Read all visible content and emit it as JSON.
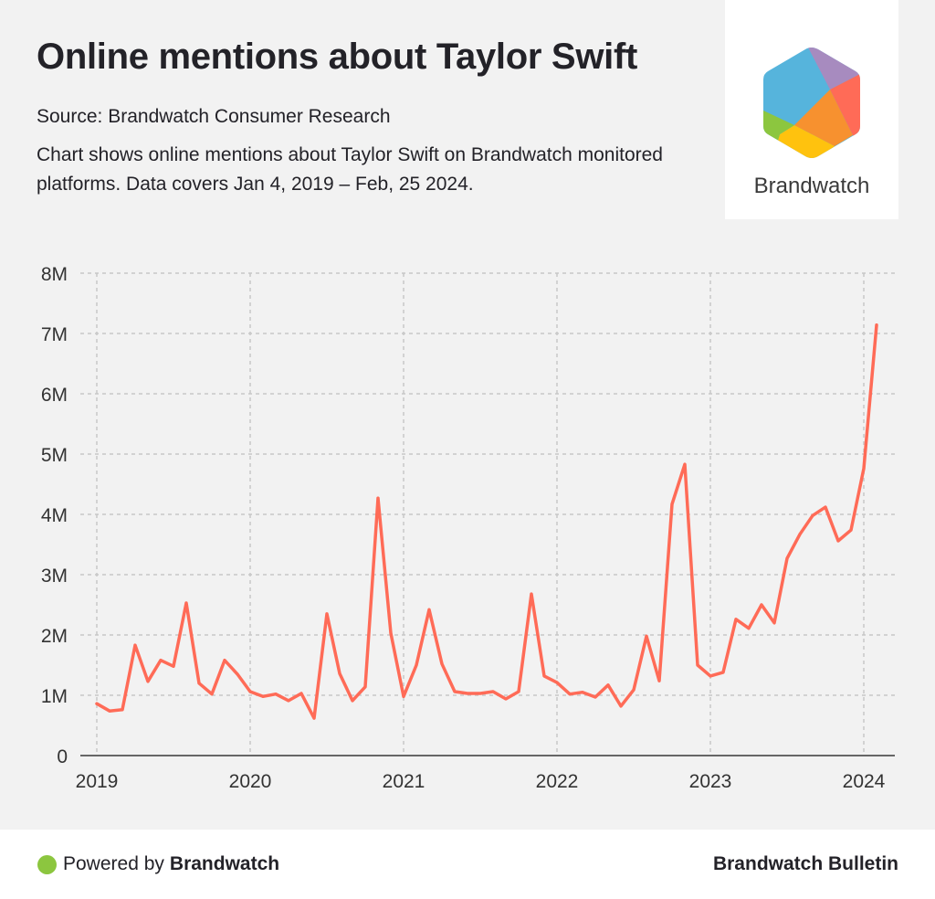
{
  "header": {
    "title": "Online mentions about Taylor Swift",
    "source": "Source: Brandwatch Consumer Research",
    "description": "Chart shows online mentions about Taylor Swift on Brandwatch monitored platforms. Data covers Jan 4, 2019 – Feb, 25 2024."
  },
  "logo": {
    "text": "Brandwatch",
    "colors": [
      "#56b4dc",
      "#a78bbf",
      "#ff6b57",
      "#f7912f",
      "#ffc20e",
      "#8cc63f"
    ]
  },
  "footer": {
    "powered_prefix": "Powered by",
    "powered_brand": "Brandwatch",
    "right_label": "Brandwatch Bulletin",
    "dot_color": "#8cc63f"
  },
  "chart_data": {
    "type": "line",
    "title": "Online mentions about Taylor Swift",
    "xlabel": "",
    "ylabel": "",
    "ylim": [
      0,
      8000000
    ],
    "y_ticks": [
      0,
      1000000,
      2000000,
      3000000,
      4000000,
      5000000,
      6000000,
      7000000,
      8000000
    ],
    "y_tick_labels": [
      "0",
      "1M",
      "2M",
      "3M",
      "4M",
      "5M",
      "6M",
      "7M",
      "8M"
    ],
    "x_tick_labels": [
      "2019",
      "2020",
      "2021",
      "2022",
      "2023",
      "2024"
    ],
    "x_start": "2019-01",
    "x_interval": "month",
    "grid": true,
    "line_color": "#ff6b57",
    "series": [
      {
        "name": "Mentions",
        "values": [
          860000,
          740000,
          760000,
          1830000,
          1230000,
          1580000,
          1480000,
          2530000,
          1200000,
          1020000,
          1580000,
          1350000,
          1060000,
          980000,
          1020000,
          910000,
          1030000,
          620000,
          2350000,
          1360000,
          910000,
          1140000,
          4270000,
          2030000,
          980000,
          1500000,
          2420000,
          1520000,
          1060000,
          1030000,
          1030000,
          1060000,
          940000,
          1060000,
          2680000,
          1320000,
          1210000,
          1020000,
          1050000,
          970000,
          1170000,
          820000,
          1090000,
          1980000,
          1240000,
          4170000,
          4830000,
          1500000,
          1320000,
          1380000,
          2260000,
          2110000,
          2500000,
          2200000,
          3270000,
          3670000,
          3980000,
          4120000,
          3560000,
          3740000,
          4760000,
          7140000
        ]
      }
    ]
  }
}
